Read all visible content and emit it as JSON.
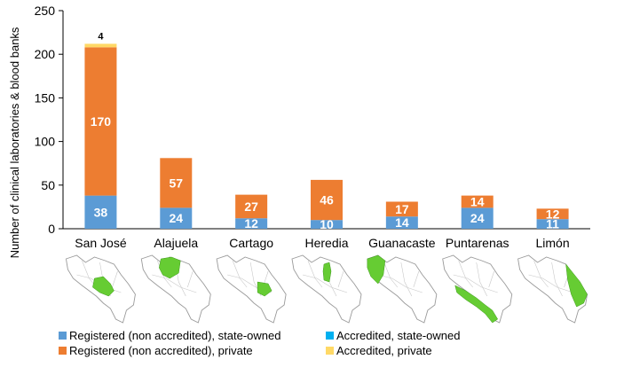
{
  "chart_data": {
    "type": "bar",
    "stacked": true,
    "title": "",
    "xlabel": "",
    "ylabel": "Number of clinical laboratories & blood banks",
    "ylim": [
      0,
      250
    ],
    "yticks": [
      0,
      50,
      100,
      150,
      200,
      250
    ],
    "grid": false,
    "legend_position": "bottom",
    "categories": [
      "San José",
      "Alajuela",
      "Cartago",
      "Heredia",
      "Guanacaste",
      "Puntarenas",
      "Limón"
    ],
    "series": [
      {
        "name": "Registered (non accredited), state-owned",
        "color": "#5B9BD5",
        "values": [
          38,
          24,
          12,
          10,
          14,
          24,
          11
        ]
      },
      {
        "name": "Accredited, state-owned",
        "color": "#00B0F0",
        "values": [
          0,
          0,
          0,
          0,
          0,
          0,
          0
        ]
      },
      {
        "name": "Registered (non accredited), private",
        "color": "#ED7D31",
        "values": [
          170,
          57,
          27,
          46,
          17,
          14,
          12
        ]
      },
      {
        "name": "Accredited, private",
        "color": "#FFD966",
        "values": [
          4,
          0,
          0,
          0,
          0,
          0,
          0
        ]
      }
    ],
    "data_labels": [
      {
        "category": "San José",
        "series": "Registered (non accredited), state-owned",
        "text": "38"
      },
      {
        "category": "San José",
        "series": "Registered (non accredited), private",
        "text": "170"
      },
      {
        "category": "San José",
        "series": "Accredited, private",
        "text": "4"
      },
      {
        "category": "Alajuela",
        "series": "Registered (non accredited), state-owned",
        "text": "24"
      },
      {
        "category": "Alajuela",
        "series": "Registered (non accredited), private",
        "text": "57"
      },
      {
        "category": "Cartago",
        "series": "Registered (non accredited), state-owned",
        "text": "12"
      },
      {
        "category": "Cartago",
        "series": "Registered (non accredited), private",
        "text": "27"
      },
      {
        "category": "Heredia",
        "series": "Registered (non accredited), state-owned",
        "text": "10"
      },
      {
        "category": "Heredia",
        "series": "Registered (non accredited), private",
        "text": "46"
      },
      {
        "category": "Guanacaste",
        "series": "Registered (non accredited), state-owned",
        "text": "14"
      },
      {
        "category": "Guanacaste",
        "series": "Registered (non accredited), private",
        "text": "17"
      },
      {
        "category": "Puntarenas",
        "series": "Registered (non accredited), state-owned",
        "text": "24"
      },
      {
        "category": "Puntarenas",
        "series": "Registered (non accredited), private",
        "text": "14"
      },
      {
        "category": "Limón",
        "series": "Registered (non accredited), state-owned",
        "text": "11"
      },
      {
        "category": "Limón",
        "series": "Registered (non accredited), private",
        "text": "12"
      }
    ],
    "province_maps": {
      "highlight_color": "#66CC33",
      "outline_color": "#9A9A9A"
    }
  }
}
